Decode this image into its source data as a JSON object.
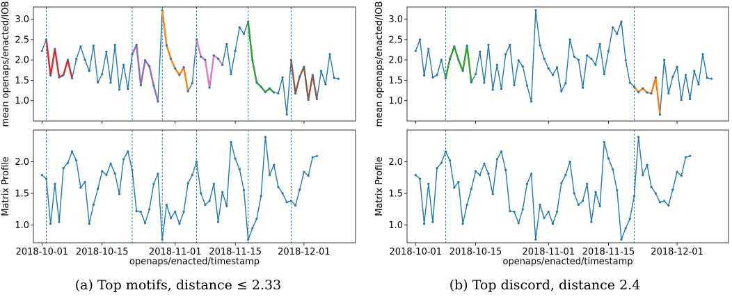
{
  "captions": {
    "a": "(a) Top motifs, distance ≤ 2.33",
    "b": "(b) Top discord, distance 2.4"
  },
  "colors": {
    "series": "#1f77b4",
    "motif_1": "#d62728",
    "motif_2": "#9467bd",
    "motif_3": "#ff7f0e",
    "motif_4": "#e377c2",
    "motif_5": "#2ca02c",
    "motif_6": "#8c564b",
    "discord_1": "#2ca02c",
    "discord_2": "#ff7f0e"
  },
  "chart_data": [
    {
      "type": "line",
      "panel": "a-top",
      "ylabel": "mean openaps/enacted/IOB",
      "xlabel": "",
      "ylim": [
        0.5,
        3.3
      ],
      "yticks": [
        "1.0",
        "1.5",
        "2.0",
        "2.5",
        "3.0"
      ],
      "x_start_day": 274,
      "x_step_days": 1,
      "values": [
        2.22,
        2.5,
        1.62,
        2.27,
        1.57,
        1.63,
        2.0,
        1.55,
        2.02,
        2.33,
        2.0,
        1.73,
        2.35,
        1.45,
        1.65,
        2.2,
        1.44,
        2.37,
        1.27,
        1.88,
        1.29,
        2.14,
        2.37,
        1.38,
        1.99,
        1.84,
        1.37,
        0.98,
        3.22,
        2.36,
        2.03,
        1.79,
        1.63,
        1.82,
        1.23,
        1.43,
        2.5,
        2.08,
        2.0,
        1.32,
        2.11,
        2.03,
        1.88,
        2.39,
        1.65,
        2.22,
        2.8,
        2.64,
        2.94,
        1.99,
        1.44,
        1.34,
        1.21,
        1.3,
        1.2,
        1.18,
        1.57,
        0.66,
        2.0,
        1.18,
        1.59,
        1.83,
        1.02,
        1.63,
        1.04,
        1.73,
        1.4,
        2.14,
        1.56,
        1.54
      ],
      "highlights": [
        {
          "from": 1,
          "to": 7,
          "color_key": "motif_1"
        },
        {
          "from": 21,
          "to": 27,
          "color_key": "motif_2"
        },
        {
          "from": 28,
          "to": 34,
          "color_key": "motif_3"
        },
        {
          "from": 36,
          "to": 42,
          "color_key": "motif_4"
        },
        {
          "from": 48,
          "to": 54,
          "color_key": "motif_5"
        },
        {
          "from": 58,
          "to": 64,
          "color_key": "motif_6"
        }
      ],
      "vlines": [
        1,
        21,
        28,
        36,
        48,
        58
      ]
    },
    {
      "type": "line",
      "panel": "a-bottom",
      "ylabel": "Matrix Profile",
      "xlabel": "openaps/enacted/timestamp",
      "ylim": [
        0.72,
        2.5
      ],
      "yticks": [
        "1.0",
        "1.5",
        "2.0"
      ],
      "xticks": [
        "2018-10-01",
        "2018-10-15",
        "2018-11-01",
        "2018-11-15",
        "2018-12-01"
      ],
      "xtick_days": [
        274,
        288,
        305,
        319,
        335
      ],
      "x_start_day": 274,
      "x_step_days": 1,
      "values": [
        1.79,
        1.73,
        1.02,
        1.65,
        1.05,
        1.9,
        1.98,
        2.16,
        2.02,
        1.59,
        1.68,
        1.02,
        1.32,
        1.57,
        1.85,
        1.79,
        1.97,
        1.81,
        1.49,
        2.04,
        2.16,
        1.87,
        1.22,
        1.21,
        1.03,
        1.25,
        1.65,
        1.81,
        0.77,
        1.32,
        1.11,
        1.21,
        1.02,
        1.21,
        1.66,
        1.79,
        2.0,
        1.5,
        1.32,
        1.38,
        1.65,
        1.05,
        1.52,
        1.3,
        2.31,
        2.05,
        1.88,
        1.55,
        0.77,
        0.95,
        1.1,
        1.46,
        2.39,
        1.79,
        1.95,
        1.6,
        1.5,
        1.36,
        1.38,
        1.31,
        1.56,
        1.84,
        1.78,
        2.07,
        2.09
      ],
      "vlines": [
        1,
        21,
        28,
        36,
        48,
        58
      ]
    },
    {
      "type": "line",
      "panel": "b-top",
      "ylabel": "mean openaps/enacted/IOB",
      "xlabel": "",
      "ylim": [
        0.5,
        3.3
      ],
      "yticks": [
        "1.0",
        "1.5",
        "2.0",
        "2.5",
        "3.0"
      ],
      "x_start_day": 274,
      "x_step_days": 1,
      "values": [
        2.22,
        2.5,
        1.62,
        2.27,
        1.57,
        1.63,
        2.0,
        1.55,
        2.02,
        2.33,
        2.0,
        1.73,
        2.35,
        1.45,
        1.65,
        2.2,
        1.44,
        2.37,
        1.27,
        1.88,
        1.29,
        2.14,
        2.37,
        1.38,
        1.99,
        1.84,
        1.37,
        0.98,
        3.22,
        2.36,
        2.03,
        1.79,
        1.63,
        1.82,
        1.23,
        1.43,
        2.5,
        2.08,
        2.0,
        1.32,
        2.11,
        2.03,
        1.88,
        2.39,
        1.65,
        2.22,
        2.8,
        2.64,
        2.94,
        1.99,
        1.44,
        1.34,
        1.21,
        1.3,
        1.2,
        1.18,
        1.57,
        0.66,
        2.0,
        1.18,
        1.59,
        1.83,
        1.02,
        1.63,
        1.04,
        1.73,
        1.4,
        2.14,
        1.56,
        1.54
      ],
      "highlights": [
        {
          "from": 7,
          "to": 13,
          "color_key": "discord_1"
        },
        {
          "from": 51,
          "to": 57,
          "color_key": "discord_2"
        }
      ],
      "vlines": [
        7,
        51
      ]
    },
    {
      "type": "line",
      "panel": "b-bottom",
      "ylabel": "Matrix Profile",
      "xlabel": "openaps/enacted/timestamp",
      "ylim": [
        0.72,
        2.5
      ],
      "yticks": [
        "1.0",
        "1.5",
        "2.0"
      ],
      "xticks": [
        "2018-10-01",
        "2018-10-15",
        "2018-11-01",
        "2018-11-15",
        "2018-12-01"
      ],
      "xtick_days": [
        274,
        288,
        305,
        319,
        335
      ],
      "x_start_day": 274,
      "x_step_days": 1,
      "values": [
        1.79,
        1.73,
        1.02,
        1.65,
        1.05,
        1.9,
        1.98,
        2.16,
        2.02,
        1.59,
        1.68,
        1.02,
        1.32,
        1.57,
        1.85,
        1.79,
        1.97,
        1.81,
        1.49,
        2.04,
        2.16,
        1.87,
        1.22,
        1.21,
        1.03,
        1.25,
        1.65,
        1.81,
        0.77,
        1.32,
        1.11,
        1.21,
        1.02,
        1.21,
        1.66,
        1.79,
        2.0,
        1.5,
        1.32,
        1.38,
        1.65,
        1.05,
        1.52,
        1.3,
        2.31,
        2.05,
        1.88,
        1.55,
        0.77,
        0.95,
        1.1,
        1.46,
        2.39,
        1.79,
        1.95,
        1.6,
        1.5,
        1.36,
        1.38,
        1.31,
        1.56,
        1.84,
        1.78,
        2.07,
        2.09
      ],
      "vlines": [
        7,
        51
      ]
    }
  ]
}
